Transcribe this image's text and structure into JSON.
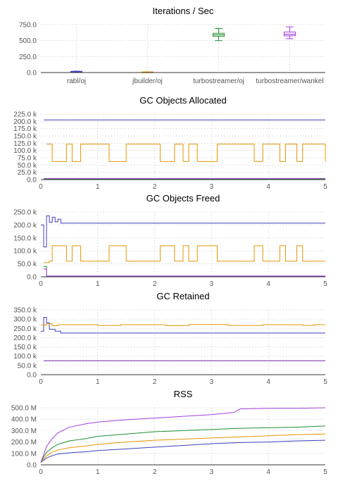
{
  "colors": {
    "rabl_oj": "#3f3fbf",
    "jbuilder_oj": "#e59400",
    "turbostreamer_oj": "#1f8f2f",
    "turbostreamer_wankel": "#a33fdc",
    "grid": "#c8c8c8",
    "axis": "#333333"
  },
  "chart_data": [
    {
      "id": "ips",
      "type": "box",
      "title": "Iterations / Sec",
      "ylim": [
        0,
        750
      ],
      "yticks": [
        0,
        250,
        500,
        750
      ],
      "ytick_labels": [
        "0.0",
        "250.0",
        "500.0",
        "750.0"
      ],
      "categories": [
        "rabl/oj",
        "jbuilder/oj",
        "turbostreamer/oj",
        "turbostreamer/wankel"
      ],
      "series": [
        {
          "key": "rabl_oj",
          "min": 10,
          "q1": 14,
          "median": 16,
          "q3": 18,
          "max": 21
        },
        {
          "key": "jbuilder_oj",
          "min": 5,
          "q1": 7,
          "median": 8,
          "q3": 9,
          "max": 11
        },
        {
          "key": "turbostreamer_oj",
          "min": 500,
          "q1": 565,
          "median": 590,
          "q3": 615,
          "max": 690
        },
        {
          "key": "turbostreamer_wankel",
          "min": 530,
          "q1": 575,
          "median": 600,
          "q3": 635,
          "max": 715
        }
      ]
    },
    {
      "id": "alloc",
      "type": "line",
      "title": "GC Objects Allocated",
      "xlim": [
        0,
        5
      ],
      "ylim": [
        0,
        225000
      ],
      "yticks": [
        0,
        25000,
        50000,
        75000,
        100000,
        125000,
        150000,
        175000,
        200000,
        225000
      ],
      "ytick_labels": [
        "0.0",
        "25.0 k",
        "50.0 k",
        "75.0 k",
        "100.0 k",
        "125.0 k",
        "150.0 k",
        "175.0 k",
        "200.0 k",
        "225.0 k"
      ],
      "xticks": [
        0,
        1,
        2,
        3,
        4,
        5
      ],
      "series": [
        {
          "key": "rabl_oj",
          "points": [
            [
              0.05,
              205000
            ],
            [
              5,
              205000
            ]
          ]
        },
        {
          "key": "jbuilder_oj",
          "points": [
            [
              0.1,
              122000
            ],
            [
              0.2,
              122000
            ],
            [
              0.2,
              62000
            ],
            [
              0.45,
              62000
            ],
            [
              0.45,
              122000
            ],
            [
              0.55,
              122000
            ],
            [
              0.55,
              62000
            ],
            [
              0.7,
              62000
            ],
            [
              0.7,
              122000
            ],
            [
              1.2,
              122000
            ],
            [
              1.2,
              62000
            ],
            [
              1.5,
              62000
            ],
            [
              1.5,
              122000
            ],
            [
              2.1,
              122000
            ],
            [
              2.1,
              62000
            ],
            [
              2.35,
              62000
            ],
            [
              2.35,
              122000
            ],
            [
              2.5,
              122000
            ],
            [
              2.5,
              62000
            ],
            [
              2.6,
              62000
            ],
            [
              2.6,
              122000
            ],
            [
              2.75,
              122000
            ],
            [
              2.75,
              62000
            ],
            [
              3.1,
              62000
            ],
            [
              3.1,
              122000
            ],
            [
              3.75,
              122000
            ],
            [
              3.75,
              62000
            ],
            [
              3.9,
              62000
            ],
            [
              3.9,
              122000
            ],
            [
              4.2,
              122000
            ],
            [
              4.2,
              62000
            ],
            [
              4.3,
              62000
            ],
            [
              4.3,
              122000
            ],
            [
              4.5,
              122000
            ],
            [
              4.5,
              62000
            ],
            [
              4.6,
              62000
            ],
            [
              4.6,
              122000
            ],
            [
              5,
              122000
            ],
            [
              5,
              62000
            ],
            [
              5,
              62000
            ]
          ]
        },
        {
          "key": "turbostreamer_oj",
          "points": [
            [
              0.05,
              2000
            ],
            [
              5,
              2000
            ]
          ]
        },
        {
          "key": "turbostreamer_wankel",
          "points": [
            [
              0.05,
              4000
            ],
            [
              5,
              4000
            ]
          ]
        }
      ]
    },
    {
      "id": "freed",
      "type": "line",
      "title": "GC Objects Freed",
      "xlim": [
        0,
        5
      ],
      "ylim": [
        0,
        250000
      ],
      "yticks": [
        0,
        50000,
        100000,
        150000,
        200000,
        250000
      ],
      "ytick_labels": [
        "0.0",
        "50.0 k",
        "100.0 k",
        "150.0 k",
        "200.0 k",
        "250.0 k"
      ],
      "xticks": [
        0,
        1,
        2,
        3,
        4,
        5
      ],
      "series": [
        {
          "key": "rabl_oj",
          "points": [
            [
              0.0,
              200000
            ],
            [
              0.05,
              200000
            ],
            [
              0.05,
              115000
            ],
            [
              0.1,
              115000
            ],
            [
              0.1,
              235000
            ],
            [
              0.15,
              235000
            ],
            [
              0.15,
              210000
            ],
            [
              0.2,
              210000
            ],
            [
              0.2,
              230000
            ],
            [
              0.25,
              230000
            ],
            [
              0.25,
              212000
            ],
            [
              0.3,
              212000
            ],
            [
              0.3,
              222000
            ],
            [
              0.35,
              222000
            ],
            [
              0.35,
              207000
            ],
            [
              5,
              207000
            ]
          ]
        },
        {
          "key": "jbuilder_oj",
          "points": [
            [
              0.05,
              55000
            ],
            [
              0.15,
              55000
            ],
            [
              0.15,
              60000
            ],
            [
              0.2,
              60000
            ],
            [
              0.2,
              120000
            ],
            [
              0.45,
              120000
            ],
            [
              0.45,
              60000
            ],
            [
              0.55,
              60000
            ],
            [
              0.55,
              120000
            ],
            [
              0.7,
              120000
            ],
            [
              0.7,
              60000
            ],
            [
              1.2,
              60000
            ],
            [
              1.2,
              120000
            ],
            [
              1.5,
              120000
            ],
            [
              1.5,
              60000
            ],
            [
              2.1,
              60000
            ],
            [
              2.1,
              120000
            ],
            [
              2.35,
              120000
            ],
            [
              2.35,
              60000
            ],
            [
              2.5,
              60000
            ],
            [
              2.5,
              120000
            ],
            [
              2.6,
              120000
            ],
            [
              2.6,
              60000
            ],
            [
              2.75,
              60000
            ],
            [
              2.75,
              120000
            ],
            [
              3.1,
              120000
            ],
            [
              3.1,
              60000
            ],
            [
              3.75,
              60000
            ],
            [
              3.75,
              120000
            ],
            [
              3.9,
              120000
            ],
            [
              3.9,
              60000
            ],
            [
              4.2,
              60000
            ],
            [
              4.2,
              120000
            ],
            [
              4.3,
              120000
            ],
            [
              4.3,
              60000
            ],
            [
              4.5,
              60000
            ],
            [
              4.5,
              120000
            ],
            [
              4.6,
              120000
            ],
            [
              4.6,
              60000
            ],
            [
              5,
              60000
            ]
          ]
        },
        {
          "key": "turbostreamer_oj",
          "points": [
            [
              0.05,
              40000
            ],
            [
              0.1,
              40000
            ],
            [
              0.1,
              2000
            ],
            [
              5,
              2000
            ]
          ]
        },
        {
          "key": "turbostreamer_wankel",
          "points": [
            [
              0.05,
              30000
            ],
            [
              0.1,
              30000
            ],
            [
              0.1,
              3000
            ],
            [
              5,
              3000
            ]
          ]
        }
      ]
    },
    {
      "id": "retained",
      "type": "line",
      "title": "GC Retained",
      "xlim": [
        0,
        5
      ],
      "ylim": [
        0,
        350000
      ],
      "yticks": [
        0,
        50000,
        100000,
        150000,
        200000,
        250000,
        300000,
        350000
      ],
      "ytick_labels": [
        "0.0",
        "50.0 k",
        "100.0 k",
        "150.0 k",
        "200.0 k",
        "250.0 k",
        "300.0 k",
        "350.0 k"
      ],
      "xticks": [
        0,
        1,
        2,
        3,
        4,
        5
      ],
      "series": [
        {
          "key": "rabl_oj",
          "points": [
            [
              0.0,
              235000
            ],
            [
              0.05,
              235000
            ],
            [
              0.05,
              310000
            ],
            [
              0.1,
              310000
            ],
            [
              0.1,
              280000
            ],
            [
              0.15,
              280000
            ],
            [
              0.15,
              245000
            ],
            [
              0.25,
              245000
            ],
            [
              0.25,
              235000
            ],
            [
              0.35,
              235000
            ],
            [
              0.35,
              225000
            ],
            [
              5,
              225000
            ]
          ]
        },
        {
          "key": "jbuilder_oj",
          "points": [
            [
              0.0,
              268000
            ],
            [
              0.1,
              268000
            ],
            [
              0.1,
              275000
            ],
            [
              0.2,
              275000
            ],
            [
              0.2,
              265000
            ],
            [
              0.3,
              265000
            ],
            [
              0.3,
              270000
            ],
            [
              1.0,
              270000
            ],
            [
              1.0,
              266000
            ],
            [
              1.4,
              266000
            ],
            [
              1.4,
              270000
            ],
            [
              2.2,
              270000
            ],
            [
              2.2,
              265000
            ],
            [
              2.6,
              265000
            ],
            [
              2.6,
              271000
            ],
            [
              3.3,
              271000
            ],
            [
              3.3,
              266000
            ],
            [
              3.9,
              266000
            ],
            [
              3.9,
              270000
            ],
            [
              4.6,
              270000
            ],
            [
              4.6,
              266000
            ],
            [
              4.8,
              266000
            ],
            [
              4.8,
              270000
            ],
            [
              5,
              270000
            ]
          ]
        },
        {
          "key": "turbostreamer_oj",
          "points": [
            [
              0.05,
              75000
            ],
            [
              5,
              75000
            ]
          ]
        },
        {
          "key": "turbostreamer_wankel",
          "points": [
            [
              0.05,
              75000
            ],
            [
              5,
              75000
            ]
          ]
        }
      ]
    },
    {
      "id": "rss",
      "type": "line",
      "title": "RSS",
      "xlim": [
        0,
        5
      ],
      "ylim": [
        0,
        500
      ],
      "yticks": [
        0,
        100,
        200,
        300,
        400,
        500
      ],
      "ytick_labels": [
        "0.0",
        "100.0 M",
        "200.0 M",
        "300.0 M",
        "400.0 M",
        "500.0 M"
      ],
      "xticks": [
        0,
        1,
        2,
        3,
        4,
        5
      ],
      "series": [
        {
          "key": "rabl_oj",
          "points": [
            [
              0.0,
              20
            ],
            [
              0.05,
              40
            ],
            [
              0.1,
              60
            ],
            [
              0.2,
              80
            ],
            [
              0.3,
              95
            ],
            [
              0.5,
              105
            ],
            [
              0.8,
              115
            ],
            [
              1.0,
              125
            ],
            [
              1.5,
              140
            ],
            [
              2.0,
              155
            ],
            [
              2.5,
              170
            ],
            [
              3.0,
              185
            ],
            [
              3.5,
              195
            ],
            [
              4.0,
              200
            ],
            [
              4.5,
              210
            ],
            [
              5,
              215
            ]
          ]
        },
        {
          "key": "jbuilder_oj",
          "points": [
            [
              0.0,
              20
            ],
            [
              0.05,
              50
            ],
            [
              0.1,
              80
            ],
            [
              0.2,
              110
            ],
            [
              0.3,
              130
            ],
            [
              0.5,
              150
            ],
            [
              0.8,
              165
            ],
            [
              1.0,
              180
            ],
            [
              1.5,
              200
            ],
            [
              2.0,
              215
            ],
            [
              2.5,
              225
            ],
            [
              3.0,
              235
            ],
            [
              3.5,
              245
            ],
            [
              4.0,
              255
            ],
            [
              4.5,
              265
            ],
            [
              5,
              270
            ]
          ]
        },
        {
          "key": "turbostreamer_oj",
          "points": [
            [
              0.0,
              20
            ],
            [
              0.05,
              70
            ],
            [
              0.1,
              110
            ],
            [
              0.2,
              150
            ],
            [
              0.3,
              180
            ],
            [
              0.5,
              210
            ],
            [
              0.8,
              230
            ],
            [
              1.0,
              250
            ],
            [
              1.5,
              270
            ],
            [
              2.0,
              290
            ],
            [
              2.5,
              300
            ],
            [
              3.0,
              310
            ],
            [
              3.5,
              320
            ],
            [
              4.0,
              325
            ],
            [
              4.5,
              330
            ],
            [
              5,
              340
            ]
          ]
        },
        {
          "key": "turbostreamer_wankel",
          "points": [
            [
              0.0,
              20
            ],
            [
              0.05,
              90
            ],
            [
              0.1,
              160
            ],
            [
              0.2,
              230
            ],
            [
              0.3,
              280
            ],
            [
              0.5,
              330
            ],
            [
              0.8,
              360
            ],
            [
              1.0,
              375
            ],
            [
              1.5,
              395
            ],
            [
              2.0,
              410
            ],
            [
              2.5,
              425
            ],
            [
              3.0,
              440
            ],
            [
              3.4,
              460
            ],
            [
              3.5,
              490
            ],
            [
              4.0,
              495
            ],
            [
              4.5,
              495
            ],
            [
              5,
              500
            ]
          ]
        }
      ]
    }
  ]
}
